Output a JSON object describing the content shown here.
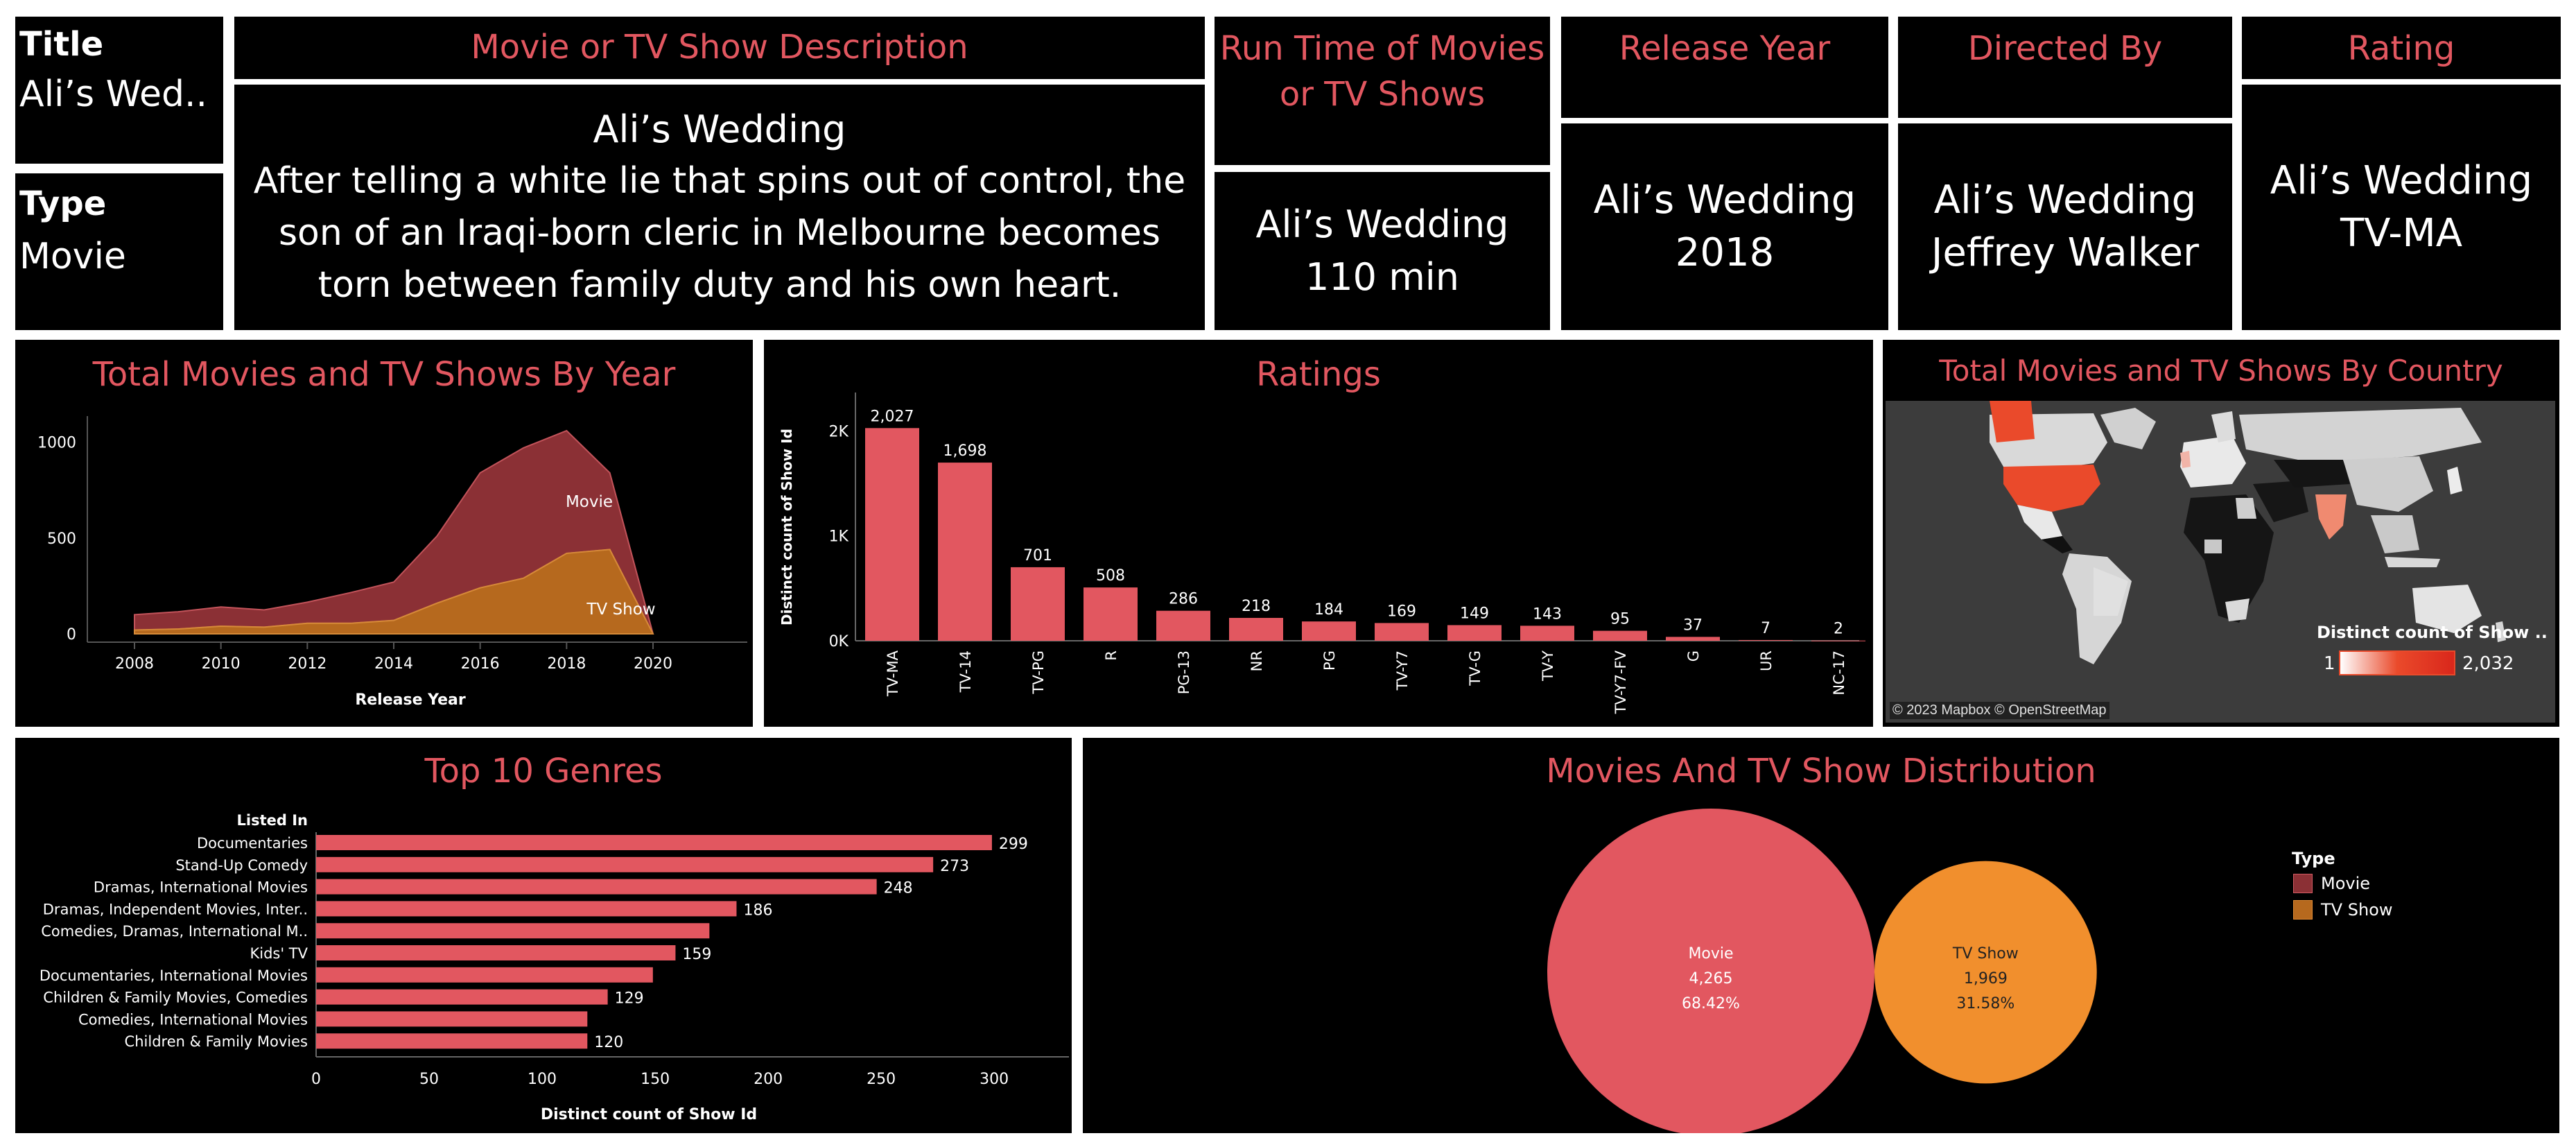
{
  "colors": {
    "panel_bg": "#000000",
    "title_red": "#e25760",
    "bar_red": "#e25760",
    "movie_area": "#8b3035",
    "tvshow_area": "#b6691e",
    "tvshow_circle": "#f18f2d",
    "map_land": "#cfcfcf",
    "map_high": "#ea4a2b"
  },
  "title_card": {
    "label": "Title",
    "value": "Ali’s Wed.."
  },
  "type_card": {
    "label": "Type",
    "value": "Movie"
  },
  "description": {
    "header": "Movie or TV Show Description",
    "name": "Ali’s Wedding",
    "text": "After telling a white lie that spins out of control, the son of an Iraqi-born cleric in Melbourne becomes torn between family duty and his own heart."
  },
  "runtime": {
    "header_line1": "Run Time of Movies",
    "header_line2": "or TV Shows",
    "name": "Ali’s Wedding",
    "value": "110 min"
  },
  "release_year": {
    "header": "Release Year",
    "name": "Ali’s Wedding",
    "value": "2018"
  },
  "directed_by": {
    "header": "Directed By",
    "name": "Ali’s Wedding",
    "value": "Jeffrey Walker"
  },
  "rating": {
    "header": "Rating",
    "name": "Ali’s Wedding",
    "value": "TV-MA"
  },
  "map": {
    "title": "Total Movies and TV Shows By Country",
    "legend_title": "Distinct count of Show ..",
    "legend_min": "1",
    "legend_max": "2,032",
    "attribution": "© 2023 Mapbox © OpenStreetMap"
  },
  "chart_data": [
    {
      "type": "area",
      "title": "Total Movies and TV Shows By Year",
      "xlabel": "Release Year",
      "ylabel": "",
      "x": [
        2008,
        2009,
        2010,
        2011,
        2012,
        2013,
        2014,
        2015,
        2016,
        2017,
        2018,
        2019,
        2020
      ],
      "x_ticks": [
        2008,
        2010,
        2012,
        2014,
        2016,
        2018,
        2020
      ],
      "y_ticks": [
        "0",
        "500",
        "1000"
      ],
      "ylim": [
        0,
        1100
      ],
      "stacked": true,
      "series": [
        {
          "name": "TV Show",
          "values": [
            20,
            25,
            40,
            35,
            55,
            55,
            70,
            160,
            240,
            290,
            420,
            440,
            0
          ]
        },
        {
          "name": "Movie",
          "values": [
            80,
            90,
            100,
            90,
            110,
            160,
            200,
            350,
            600,
            680,
            640,
            400,
            0
          ]
        }
      ]
    },
    {
      "type": "bar",
      "title": "Ratings",
      "ylabel": "Distinct count of Show Id",
      "y_ticks": [
        "0K",
        "1K",
        "2K"
      ],
      "ylim": [
        0,
        2300
      ],
      "categories": [
        "TV-MA",
        "TV-14",
        "TV-PG",
        "R",
        "PG-13",
        "NR",
        "PG",
        "TV-Y7",
        "TV-G",
        "TV-Y",
        "TV-Y7-FV",
        "G",
        "UR",
        "NC-17"
      ],
      "values": [
        2027,
        1698,
        701,
        508,
        286,
        218,
        184,
        169,
        149,
        143,
        95,
        37,
        7,
        2
      ],
      "labels": [
        "2,027",
        "1,698",
        "701",
        "508",
        "286",
        "218",
        "184",
        "169",
        "149",
        "143",
        "95",
        "37",
        "7",
        "2"
      ]
    },
    {
      "type": "bar",
      "orientation": "horizontal",
      "title": "Top 10 Genres",
      "category_header": "Listed In",
      "xlabel": "Distinct count of Show Id",
      "x_ticks": [
        0,
        50,
        100,
        150,
        200,
        250,
        300
      ],
      "xlim": [
        0,
        330
      ],
      "categories": [
        "Documentaries",
        "Stand-Up Comedy",
        "Dramas, International Movies",
        "Dramas, Independent Movies, Inter..",
        "Comedies, Dramas, International M..",
        "Kids' TV",
        "Documentaries, International Movies",
        "Children & Family Movies, Comedies",
        "Comedies, International Movies",
        "Children & Family Movies"
      ],
      "values": [
        299,
        273,
        248,
        186,
        174,
        159,
        149,
        129,
        120,
        120
      ],
      "labels": [
        "299",
        "273",
        "248",
        "186",
        "",
        "159",
        "",
        "129",
        "",
        "120"
      ]
    },
    {
      "type": "bubble",
      "title": "Movies And TV Show Distribution",
      "legend_title": "Type",
      "categories": [
        "Movie",
        "TV Show"
      ],
      "values": [
        4265,
        1969
      ],
      "labels": [
        [
          "Movie",
          "4,265",
          "68.42%"
        ],
        [
          "TV Show",
          "1,969",
          "31.58%"
        ]
      ],
      "legend_entries": [
        "Movie",
        "TV Show"
      ]
    }
  ]
}
